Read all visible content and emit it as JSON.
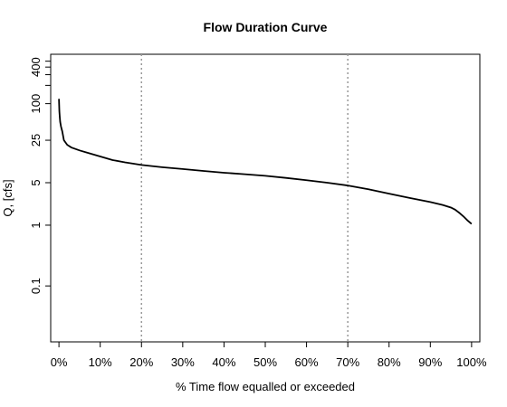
{
  "chart_data": {
    "type": "line",
    "title": "Flow Duration Curve",
    "xlabel": "% Time flow equalled or exceeded",
    "ylabel": "Q, [cfs]",
    "x_unit": "percent",
    "y_scale": "log",
    "xlim": [
      -2,
      102
    ],
    "ylim": [
      0.012,
      650
    ],
    "x_ticks": [
      {
        "value": 0,
        "label": "0%"
      },
      {
        "value": 10,
        "label": "10%"
      },
      {
        "value": 20,
        "label": "20%"
      },
      {
        "value": 30,
        "label": "30%"
      },
      {
        "value": 40,
        "label": "40%"
      },
      {
        "value": 50,
        "label": "50%"
      },
      {
        "value": 60,
        "label": "60%"
      },
      {
        "value": 70,
        "label": "70%"
      },
      {
        "value": 80,
        "label": "80%"
      },
      {
        "value": 90,
        "label": "90%"
      },
      {
        "value": 100,
        "label": "100%"
      }
    ],
    "y_ticks_labeled": [
      {
        "value": 0.1,
        "label": "0.1"
      },
      {
        "value": 1,
        "label": "1"
      },
      {
        "value": 5,
        "label": "5"
      },
      {
        "value": 25,
        "label": "25"
      },
      {
        "value": 100,
        "label": "100"
      },
      {
        "value": 400,
        "label": "400"
      }
    ],
    "y_ticks_minor": [
      200,
      300,
      500
    ],
    "reference_lines_x": [
      20,
      70
    ],
    "reference_line_style": "dotted",
    "reference_line_color": "#999999",
    "line_color": "#000000",
    "grid": false,
    "legend": "none",
    "series": [
      {
        "x": [
          0,
          0.1,
          0.2,
          0.3,
          0.5,
          0.8,
          1.2,
          2,
          3,
          5,
          7,
          10,
          13,
          16,
          20,
          25,
          30,
          35,
          40,
          45,
          50,
          55,
          60,
          65,
          70,
          75,
          80,
          85,
          90,
          93,
          95,
          96,
          97,
          98,
          99,
          100
        ],
        "y": [
          120,
          75,
          60,
          50,
          42,
          35,
          25,
          21,
          19,
          17,
          15.5,
          13.5,
          11.8,
          10.8,
          9.8,
          9.0,
          8.4,
          7.8,
          7.3,
          6.9,
          6.5,
          6.0,
          5.5,
          5.0,
          4.5,
          3.9,
          3.3,
          2.8,
          2.4,
          2.15,
          1.95,
          1.8,
          1.6,
          1.4,
          1.2,
          1.05
        ]
      }
    ]
  }
}
